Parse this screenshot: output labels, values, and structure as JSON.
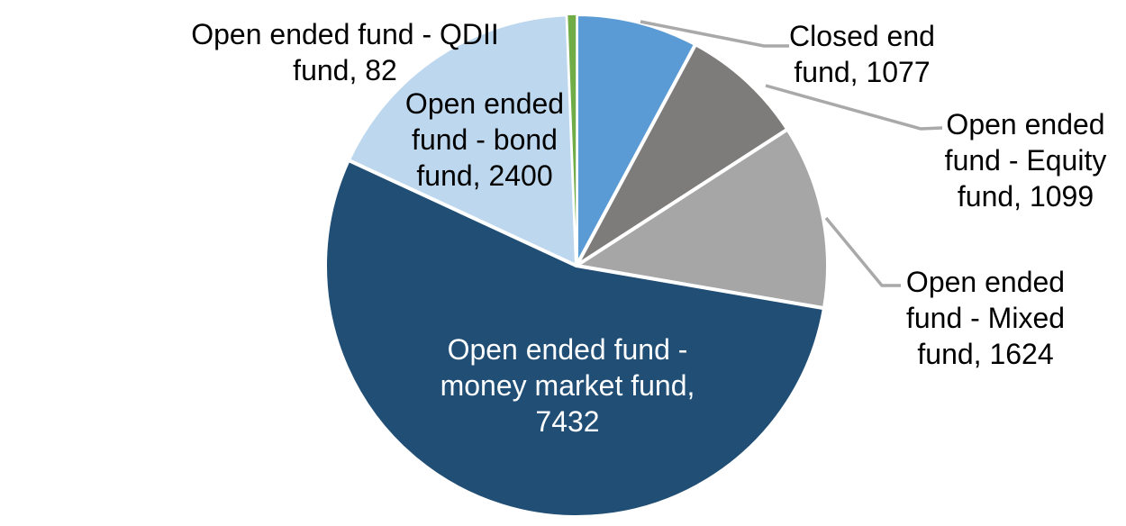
{
  "chart_data": {
    "type": "pie",
    "title": "",
    "legend": "none",
    "direction": "clockwise",
    "start_angle_deg": 0,
    "total": 13714,
    "slice_border_color": "#FFFFFF",
    "leader_line_color": "#A9A9A9",
    "label_text_color": "#000000",
    "inside_label_text_color": "#FFFFFF",
    "slices": [
      {
        "name": "Closed end fund",
        "value": 1077,
        "color": "#5B9BD5",
        "label_lines": [
          "Closed end",
          "fund, 1077"
        ],
        "label_position": "outside"
      },
      {
        "name": "Open ended fund - Equity fund",
        "value": 1099,
        "color": "#7E7B7B",
        "label_lines": [
          "Open ended",
          "fund - Equity",
          "fund, 1099"
        ],
        "label_position": "outside"
      },
      {
        "name": "Open ended fund - Mixed fund",
        "value": 1624,
        "color": "#A6A6A6",
        "label_lines": [
          "Open ended",
          "fund - Mixed",
          "fund, 1624"
        ],
        "label_position": "outside"
      },
      {
        "name": "Open ended fund - money market fund",
        "value": 7432,
        "color": "#204E75",
        "label_lines": [
          "Open ended fund -",
          "money market fund,",
          "7432"
        ],
        "label_position": "inside"
      },
      {
        "name": "Open ended fund - bond fund",
        "value": 2400,
        "color": "#BDD7EE",
        "label_lines": [
          "Open ended",
          "fund - bond",
          "fund, 2400"
        ],
        "label_position": "outside"
      },
      {
        "name": "Open ended fund - QDII fund",
        "value": 82,
        "color": "#70AD47",
        "label_lines": [
          "Open ended fund - QDII",
          "fund, 82"
        ],
        "label_position": "outside"
      }
    ]
  }
}
